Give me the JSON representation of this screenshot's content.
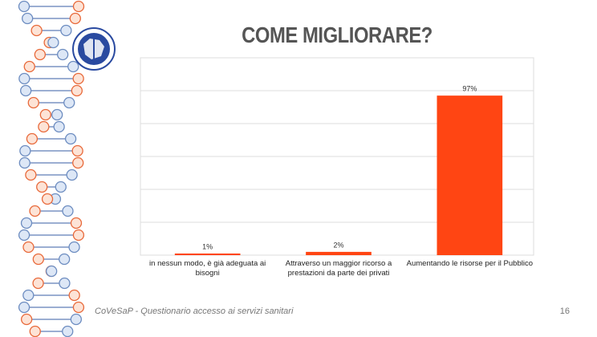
{
  "chart_data": {
    "type": "bar",
    "title": "COME MIGLIORARE?",
    "categories": [
      "in nessun modo, è già adeguata ai bisogni",
      "Attraverso un maggior ricorso a prestazioni da parte dei privati",
      "Aumentando le risorse per il Pubblico"
    ],
    "values": [
      1,
      2,
      97
    ],
    "value_labels": [
      "1%",
      "2%",
      "97%"
    ],
    "color": "#ff4513",
    "ylim": [
      0,
      120
    ],
    "yticks": [
      0,
      20,
      40,
      60,
      80,
      100,
      120
    ],
    "grid": true
  },
  "footer": "CoVeSaP - Questionario accesso ai servizi sanitari",
  "page_number": "16"
}
